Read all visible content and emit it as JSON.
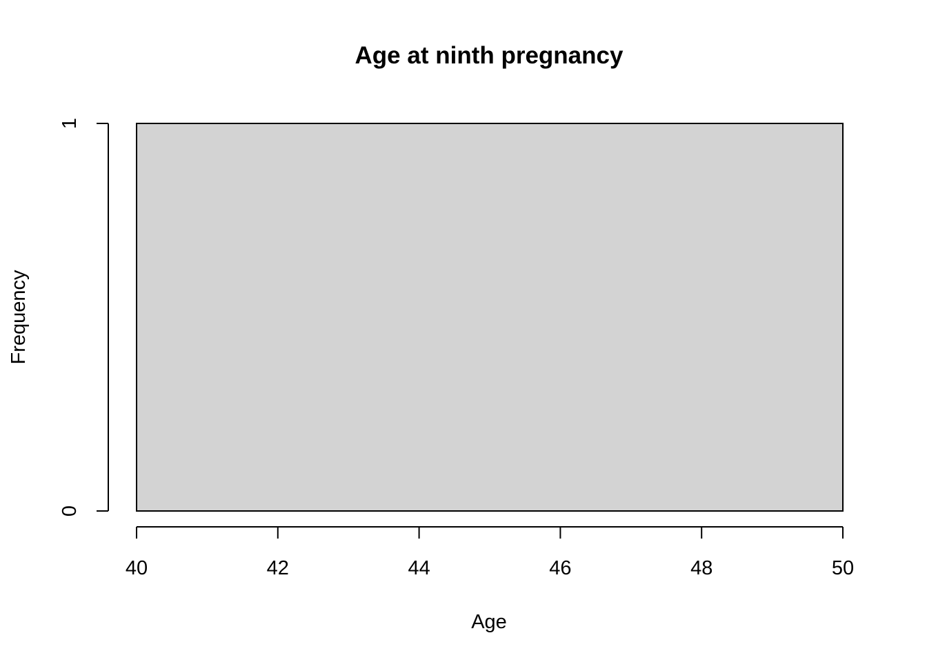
{
  "chart_data": {
    "type": "bar",
    "title": "Age at ninth pregnancy",
    "xlabel": "Age",
    "ylabel": "Frequency",
    "xlim": [
      40,
      50
    ],
    "ylim": [
      0,
      1
    ],
    "x_ticks": [
      40,
      42,
      44,
      46,
      48,
      50
    ],
    "y_ticks": [
      0,
      1
    ],
    "bins": [
      {
        "x_start": 40,
        "x_end": 50,
        "value": 1
      }
    ],
    "bar_color": "#d3d3d3",
    "grid": false,
    "legend": "none"
  }
}
